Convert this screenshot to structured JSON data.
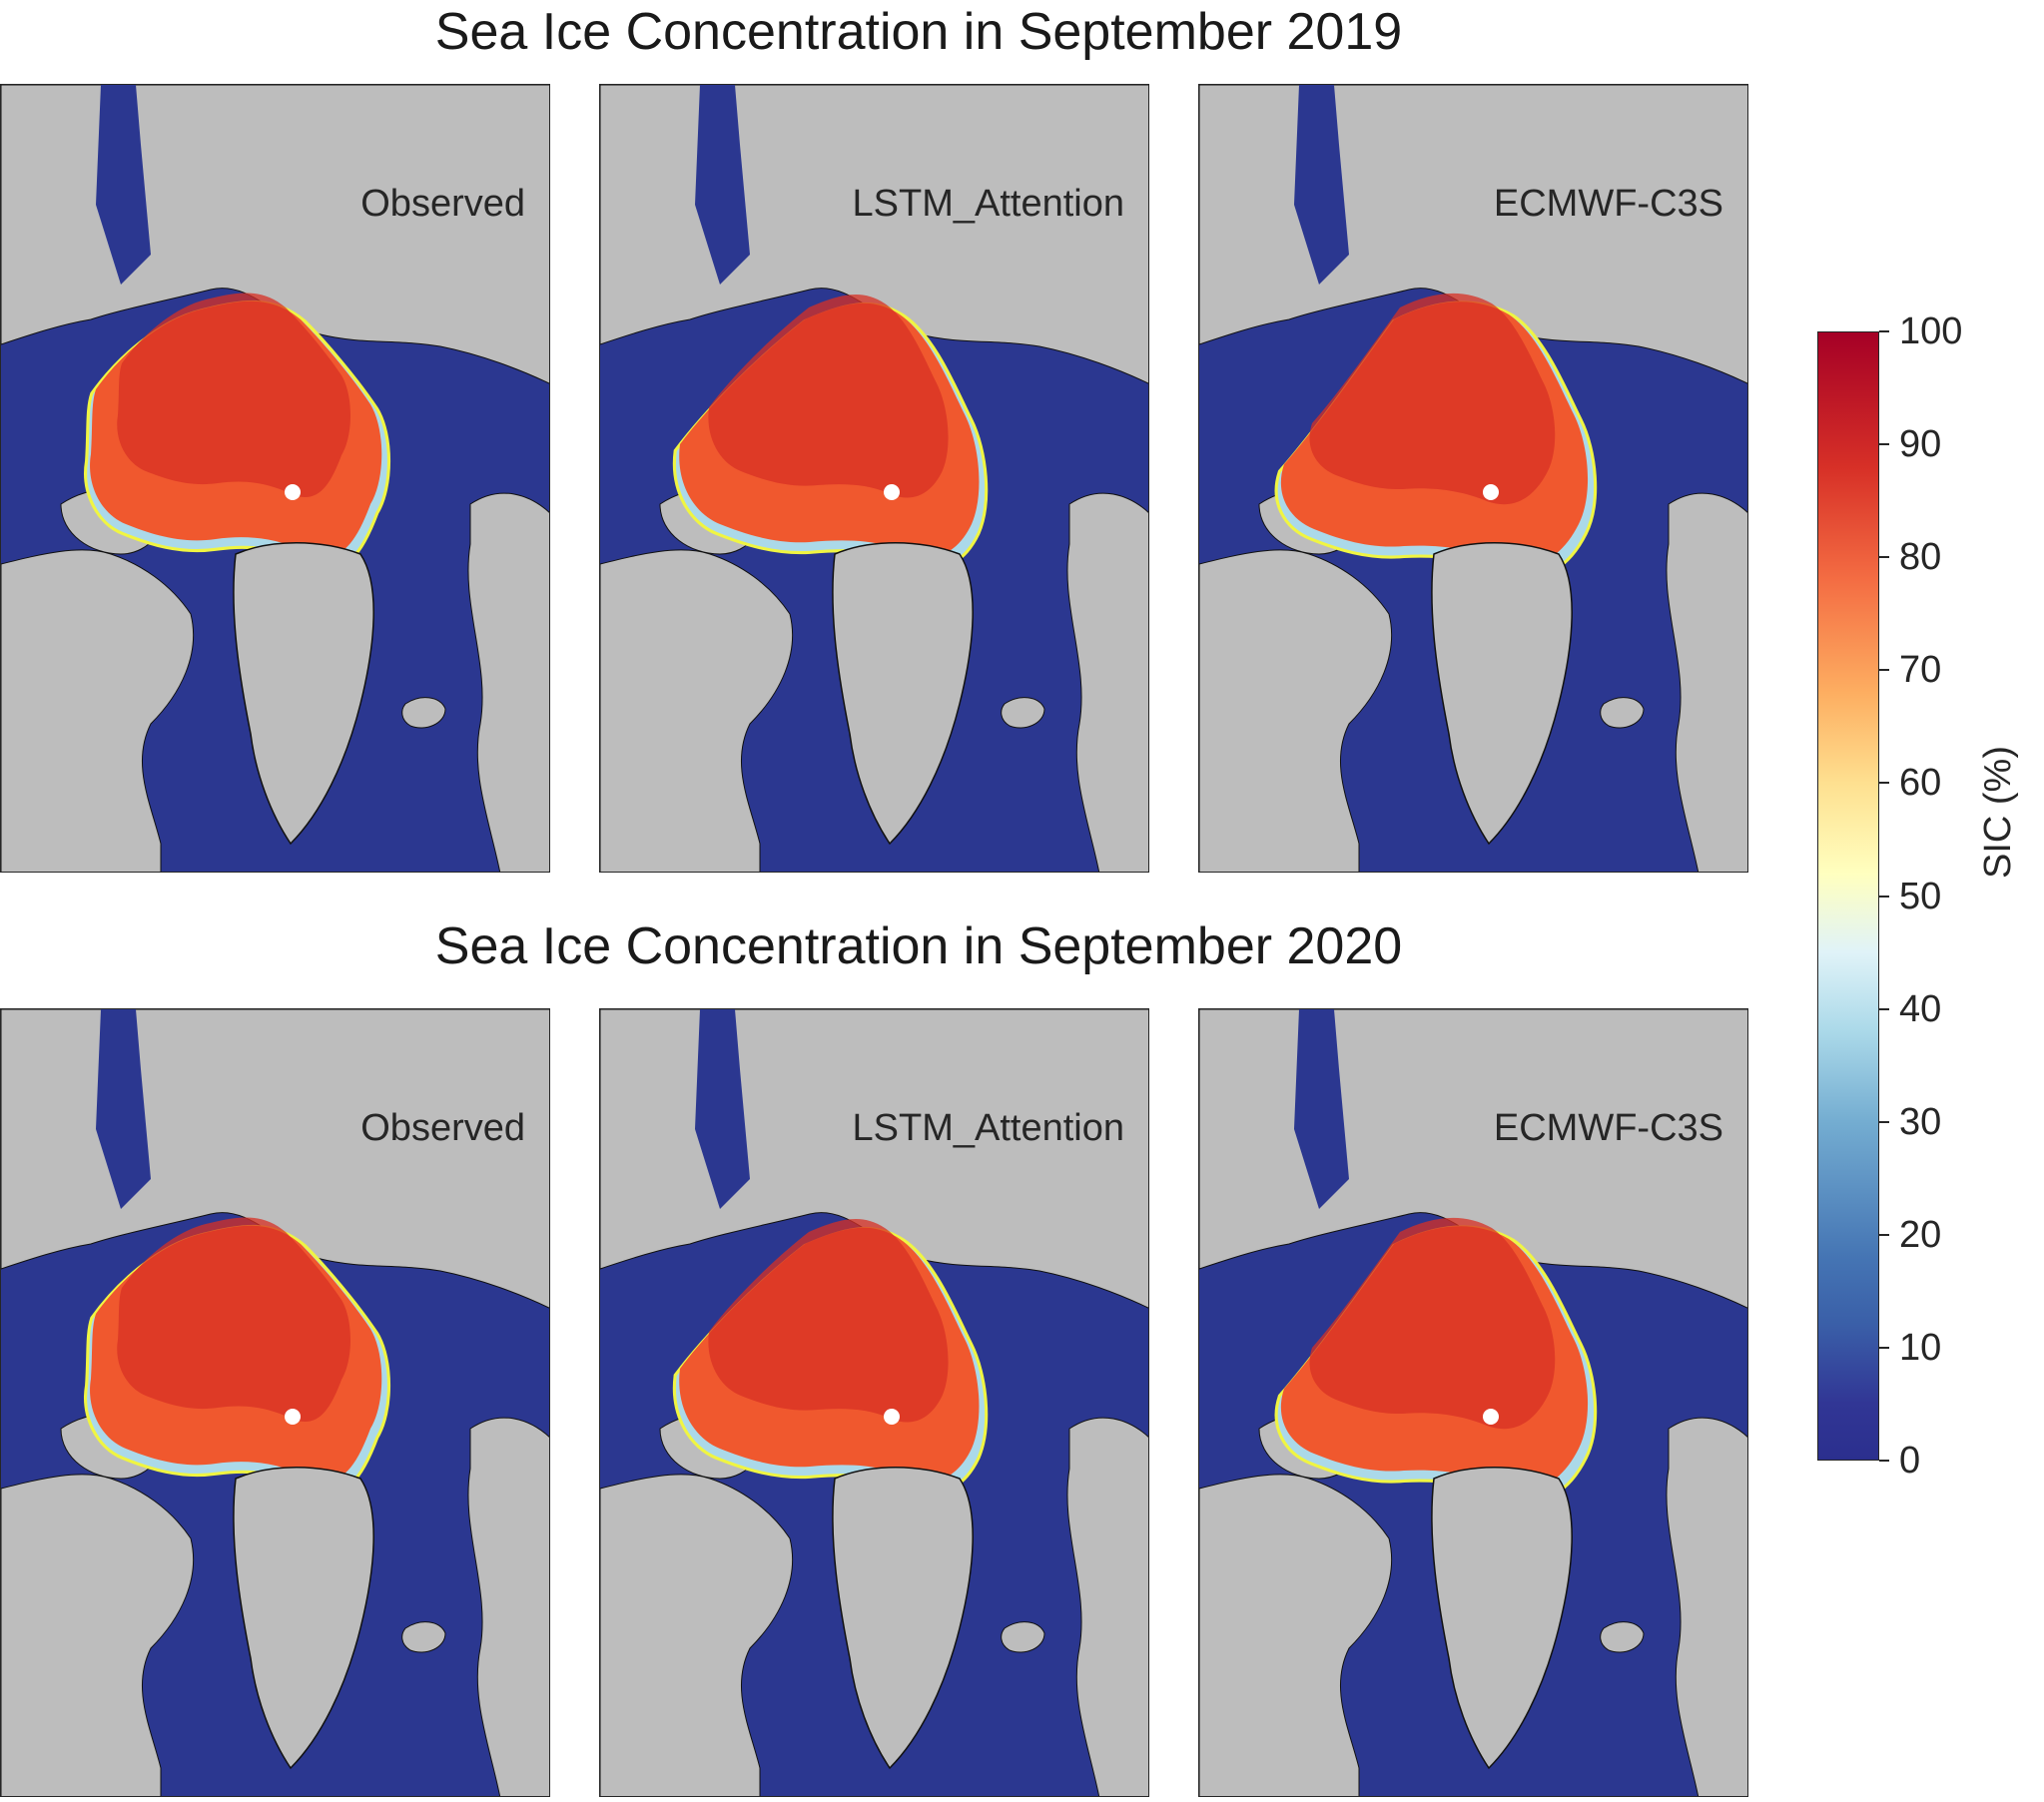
{
  "figure": {
    "titles": [
      "Sea Ice Concentration in September 2019",
      "Sea Ice Concentration in September 2020"
    ],
    "rows": [
      {
        "year": "2019",
        "panels": [
          {
            "label": "Observed",
            "variant": "obs"
          },
          {
            "label": "LSTM_Attention",
            "variant": "lstm"
          },
          {
            "label": "ECMWF-C3S",
            "variant": "ecmwf"
          }
        ]
      },
      {
        "year": "2020",
        "panels": [
          {
            "label": "Observed",
            "variant": "obs"
          },
          {
            "label": "LSTM_Attention",
            "variant": "lstm"
          },
          {
            "label": "ECMWF-C3S",
            "variant": "ecmwf"
          }
        ]
      }
    ]
  },
  "colorbar": {
    "label": "SIC (%)",
    "min": 0,
    "max": 100,
    "ticks": [
      "0",
      "10",
      "20",
      "30",
      "40",
      "50",
      "60",
      "70",
      "80",
      "90",
      "100"
    ],
    "colormap": [
      "#313695",
      "#4575b4",
      "#74add1",
      "#abd9e9",
      "#e0f3f8",
      "#ffffbf",
      "#fee090",
      "#fdae61",
      "#f46d43",
      "#d73027",
      "#a50026"
    ]
  },
  "colors": {
    "ocean": "#2b3790",
    "land": "#bdbdbd",
    "ice_edge": "#f0f542",
    "pole_marker": "#ffffff",
    "ice_core": "#d83024",
    "ice_mid": "#f0582e",
    "ice_rim": "#abd9e9"
  }
}
